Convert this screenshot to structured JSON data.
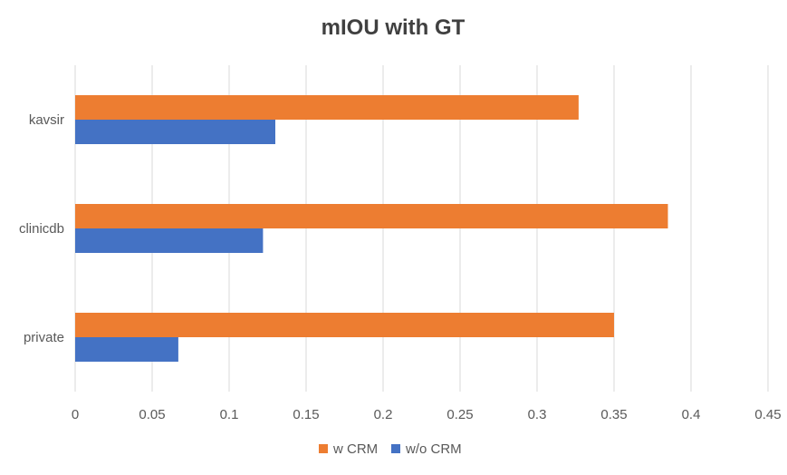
{
  "chart_data": {
    "type": "bar",
    "orientation": "horizontal",
    "title": "mIOU with GT",
    "xlabel": "",
    "ylabel": "",
    "categories": [
      "kavsir",
      "clinicdb",
      "private"
    ],
    "series": [
      {
        "name": "w CRM",
        "values": [
          0.327,
          0.385,
          0.35
        ],
        "color": "#ED7D31"
      },
      {
        "name": "w/o CRM",
        "values": [
          0.13,
          0.122,
          0.067
        ],
        "color": "#4472C4"
      }
    ],
    "xlim": [
      0,
      0.45
    ],
    "x_ticks": [
      "0",
      "0.05",
      "0.1",
      "0.15",
      "0.2",
      "0.25",
      "0.3",
      "0.35",
      "0.4",
      "0.45"
    ],
    "grid": "vertical",
    "gridline_color": "#D9D9D9",
    "legend_position": "bottom"
  }
}
